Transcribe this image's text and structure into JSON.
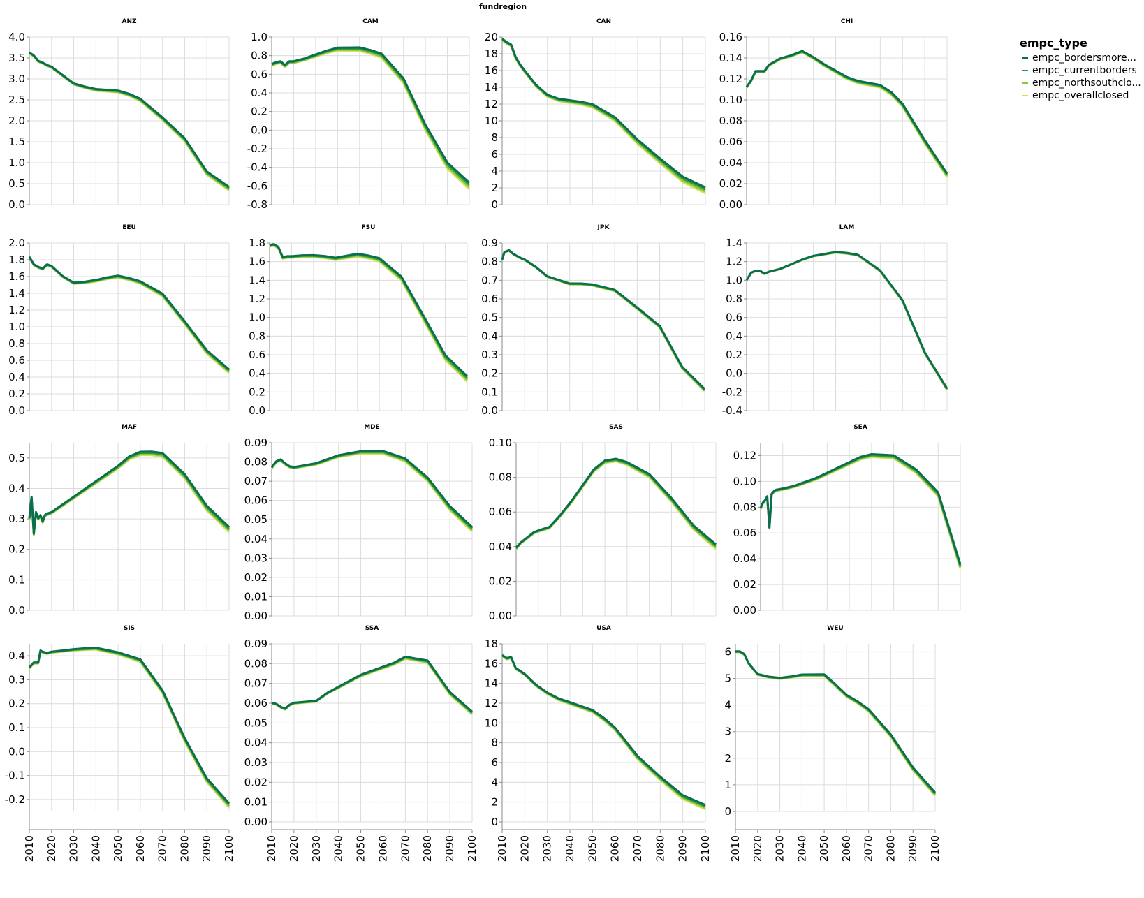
{
  "chart_data": {
    "type": "line",
    "title": "fundregion",
    "legend": {
      "title": "empc_type",
      "placement": "top-right",
      "entries": [
        {
          "label": "empc_bordersmore...",
          "color": "#0b6e4f"
        },
        {
          "label": "empc_currentborders",
          "color": "#2e9a3e"
        },
        {
          "label": "empc_northsouthclo...",
          "color": "#8cc63f"
        },
        {
          "label": "empc_overallclosed",
          "color": "#d4e157"
        }
      ]
    },
    "x_ticks": [
      "2010",
      "2020",
      "2030",
      "2040",
      "2050",
      "2060",
      "2070",
      "2080",
      "2090",
      "2100"
    ],
    "facets": [
      {
        "name": "ANZ",
        "ylim": [
          0,
          4.0
        ],
        "yticks": [
          "0.0",
          "0.5",
          "1.0",
          "1.5",
          "2.0",
          "2.5",
          "3.0",
          "3.5",
          "4.0"
        ],
        "x": [
          2010,
          2012,
          2014,
          2016,
          2018,
          2020,
          2025,
          2030,
          2035,
          2040,
          2045,
          2050,
          2055,
          2060,
          2070,
          2080,
          2090,
          2100
        ],
        "y": [
          3.62,
          3.55,
          3.42,
          3.38,
          3.32,
          3.28,
          3.08,
          2.88,
          2.8,
          2.74,
          2.72,
          2.7,
          2.62,
          2.5,
          2.05,
          1.55,
          0.75,
          0.38
        ],
        "spread": 0.03
      },
      {
        "name": "CAM",
        "ylim": [
          -0.8,
          1.0
        ],
        "yticks": [
          "-0.8",
          "-0.6",
          "-0.4",
          "-0.2",
          "0.0",
          "0.2",
          "0.4",
          "0.6",
          "0.8",
          "1.0"
        ],
        "x": [
          2010,
          2012,
          2014,
          2016,
          2018,
          2020,
          2025,
          2030,
          2035,
          2040,
          2045,
          2050,
          2055,
          2060,
          2070,
          2080,
          2090,
          2100
        ],
        "y": [
          0.7,
          0.72,
          0.73,
          0.69,
          0.73,
          0.73,
          0.76,
          0.8,
          0.84,
          0.87,
          0.87,
          0.87,
          0.84,
          0.8,
          0.53,
          0.03,
          -0.38,
          -0.6
        ],
        "spread": 0.025
      },
      {
        "name": "CAN",
        "ylim": [
          0,
          20
        ],
        "yticks": [
          "0",
          "2",
          "4",
          "6",
          "8",
          "10",
          "12",
          "14",
          "16",
          "18",
          "20"
        ],
        "x": [
          2010,
          2012,
          2014,
          2016,
          2018,
          2020,
          2025,
          2030,
          2035,
          2040,
          2045,
          2050,
          2055,
          2060,
          2070,
          2080,
          2090,
          2100
        ],
        "y": [
          19.7,
          19.3,
          19.0,
          17.5,
          16.6,
          15.9,
          14.2,
          13.0,
          12.5,
          12.3,
          12.1,
          11.8,
          11.0,
          10.2,
          7.5,
          5.2,
          3.0,
          1.7
        ],
        "spread": 0.25
      },
      {
        "name": "CHI",
        "ylim": [
          0,
          0.16
        ],
        "yticks": [
          "0.00",
          "0.02",
          "0.04",
          "0.06",
          "0.08",
          "0.10",
          "0.12",
          "0.14",
          "0.16"
        ],
        "x": [
          2010,
          2012,
          2014,
          2016,
          2018,
          2020,
          2025,
          2030,
          2035,
          2040,
          2045,
          2050,
          2055,
          2060,
          2070,
          2075,
          2080,
          2090,
          2100
        ],
        "y": [
          0.112,
          0.118,
          0.127,
          0.127,
          0.127,
          0.133,
          0.139,
          0.142,
          0.146,
          0.14,
          0.133,
          0.127,
          0.121,
          0.117,
          0.113,
          0.106,
          0.095,
          0.06,
          0.028
        ],
        "spread": 0.0012
      },
      {
        "name": "EEU",
        "ylim": [
          0,
          2.0
        ],
        "yticks": [
          "0.0",
          "0.2",
          "0.4",
          "0.6",
          "0.8",
          "1.0",
          "1.2",
          "1.4",
          "1.6",
          "1.8",
          "2.0"
        ],
        "x": [
          2010,
          2012,
          2014,
          2016,
          2018,
          2020,
          2025,
          2030,
          2035,
          2040,
          2045,
          2050,
          2055,
          2060,
          2070,
          2080,
          2090,
          2100
        ],
        "y": [
          1.83,
          1.74,
          1.71,
          1.69,
          1.74,
          1.72,
          1.6,
          1.52,
          1.53,
          1.55,
          1.58,
          1.6,
          1.57,
          1.53,
          1.38,
          1.05,
          0.7,
          0.47
        ],
        "spread": 0.015
      },
      {
        "name": "FSU",
        "ylim": [
          0,
          1.8
        ],
        "yticks": [
          "0.0",
          "0.2",
          "0.4",
          "0.6",
          "0.8",
          "1.0",
          "1.2",
          "1.4",
          "1.6",
          "1.8"
        ],
        "x": [
          2010,
          2012,
          2014,
          2016,
          2018,
          2020,
          2025,
          2030,
          2035,
          2040,
          2045,
          2050,
          2055,
          2060,
          2070,
          2080,
          2090,
          2100
        ],
        "y": [
          1.77,
          1.78,
          1.75,
          1.64,
          1.65,
          1.65,
          1.66,
          1.66,
          1.65,
          1.63,
          1.65,
          1.67,
          1.65,
          1.62,
          1.42,
          1.0,
          0.57,
          0.34
        ],
        "spread": 0.02
      },
      {
        "name": "JPK",
        "ylim": [
          0,
          0.9
        ],
        "yticks": [
          "0.0",
          "0.1",
          "0.2",
          "0.3",
          "0.4",
          "0.5",
          "0.6",
          "0.7",
          "0.8",
          "0.9"
        ],
        "x": [
          2010,
          2011,
          2013,
          2015,
          2018,
          2020,
          2025,
          2030,
          2035,
          2040,
          2045,
          2050,
          2055,
          2060,
          2070,
          2080,
          2090,
          2100
        ],
        "y": [
          0.81,
          0.85,
          0.86,
          0.84,
          0.82,
          0.81,
          0.77,
          0.72,
          0.7,
          0.68,
          0.68,
          0.675,
          0.66,
          0.645,
          0.55,
          0.45,
          0.23,
          0.11
        ],
        "spread": 0.004
      },
      {
        "name": "LAM",
        "ylim": [
          -0.4,
          1.4
        ],
        "yticks": [
          "-0.4",
          "-0.2",
          "0.0",
          "0.2",
          "0.4",
          "0.6",
          "0.8",
          "1.0",
          "1.2",
          "1.4"
        ],
        "x": [
          2010,
          2012,
          2014,
          2016,
          2018,
          2020,
          2025,
          2030,
          2035,
          2040,
          2045,
          2050,
          2055,
          2060,
          2070,
          2080,
          2090,
          2100
        ],
        "y": [
          1.0,
          1.08,
          1.1,
          1.1,
          1.07,
          1.09,
          1.12,
          1.17,
          1.22,
          1.26,
          1.28,
          1.3,
          1.29,
          1.27,
          1.1,
          0.78,
          0.22,
          -0.17
        ],
        "spread": 0.005
      },
      {
        "name": "MAF",
        "ylim": [
          0,
          0.55
        ],
        "yticks": [
          "0.0",
          "0.1",
          "0.2",
          "0.3",
          "0.4",
          "0.5"
        ],
        "x": [
          2010,
          2011,
          2012,
          2013,
          2014,
          2015,
          2016,
          2017,
          2018,
          2020,
          2025,
          2030,
          2035,
          2040,
          2045,
          2050,
          2055,
          2060,
          2065,
          2070,
          2080,
          2090,
          2100
        ],
        "y": [
          0.3,
          0.37,
          0.25,
          0.32,
          0.3,
          0.31,
          0.29,
          0.31,
          0.315,
          0.32,
          0.345,
          0.37,
          0.395,
          0.42,
          0.445,
          0.47,
          0.5,
          0.515,
          0.515,
          0.51,
          0.44,
          0.335,
          0.265
        ],
        "spread": 0.006
      },
      {
        "name": "MDE",
        "ylim": [
          0,
          0.09
        ],
        "yticks": [
          "0.00",
          "0.01",
          "0.02",
          "0.03",
          "0.04",
          "0.05",
          "0.06",
          "0.07",
          "0.08",
          "0.09"
        ],
        "x": [
          2010,
          2012,
          2014,
          2016,
          2018,
          2020,
          2025,
          2030,
          2035,
          2040,
          2045,
          2050,
          2055,
          2060,
          2070,
          2080,
          2090,
          2100
        ],
        "y": [
          0.077,
          0.08,
          0.081,
          0.079,
          0.0775,
          0.077,
          0.078,
          0.079,
          0.081,
          0.083,
          0.084,
          0.085,
          0.085,
          0.085,
          0.081,
          0.071,
          0.056,
          0.045
        ],
        "spread": 0.0008
      },
      {
        "name": "SAS",
        "ylim": [
          0,
          0.1
        ],
        "yticks": [
          "0.00",
          "0.02",
          "0.04",
          "0.06",
          "0.08",
          "0.10"
        ],
        "x": [
          2010,
          2012,
          2014,
          2016,
          2018,
          2020,
          2025,
          2030,
          2035,
          2040,
          2045,
          2050,
          2055,
          2060,
          2070,
          2080,
          2090,
          2100
        ],
        "y": [
          0.039,
          0.042,
          0.044,
          0.046,
          0.048,
          0.049,
          0.051,
          0.058,
          0.066,
          0.075,
          0.084,
          0.089,
          0.09,
          0.088,
          0.081,
          0.067,
          0.051,
          0.04
        ],
        "spread": 0.0009
      },
      {
        "name": "SEA",
        "ylim": [
          0,
          0.13
        ],
        "yticks": [
          "0.00",
          "0.02",
          "0.04",
          "0.06",
          "0.08",
          "0.10",
          "0.12"
        ],
        "x": [
          2010,
          2011,
          2012,
          2013,
          2014,
          2015,
          2016,
          2017,
          2020,
          2025,
          2030,
          2035,
          2040,
          2045,
          2050,
          2055,
          2060,
          2070,
          2080,
          2090,
          2100
        ],
        "y": [
          0.079,
          0.083,
          0.085,
          0.088,
          0.064,
          0.09,
          0.092,
          0.093,
          0.094,
          0.096,
          0.099,
          0.102,
          0.106,
          0.11,
          0.114,
          0.118,
          0.12,
          0.119,
          0.108,
          0.09,
          0.034
        ],
        "spread": 0.0012
      },
      {
        "name": "SIS",
        "ylim": [
          -0.25,
          0.45
        ],
        "yticks": [
          "-0.2",
          "-0.1",
          "0.0",
          "0.1",
          "0.2",
          "0.3",
          "0.4"
        ],
        "x": [
          2010,
          2011,
          2012,
          2013,
          2014,
          2015,
          2016,
          2018,
          2020,
          2025,
          2030,
          2035,
          2040,
          2045,
          2050,
          2055,
          2060,
          2070,
          2080,
          2090,
          2100
        ],
        "y": [
          0.35,
          0.36,
          0.37,
          0.37,
          0.37,
          0.42,
          0.415,
          0.41,
          0.415,
          0.42,
          0.425,
          0.428,
          0.43,
          0.42,
          0.41,
          0.395,
          0.38,
          0.25,
          0.05,
          -0.12,
          -0.225
        ],
        "spread": 0.006
      },
      {
        "name": "SSA",
        "ylim": [
          0,
          0.09
        ],
        "yticks": [
          "0.00",
          "0.01",
          "0.02",
          "0.03",
          "0.04",
          "0.05",
          "0.06",
          "0.07",
          "0.08",
          "0.09"
        ],
        "x": [
          2010,
          2012,
          2014,
          2016,
          2018,
          2020,
          2025,
          2030,
          2035,
          2040,
          2045,
          2050,
          2055,
          2060,
          2065,
          2070,
          2075,
          2080,
          2090,
          2100
        ],
        "y": [
          0.06,
          0.0595,
          0.058,
          0.057,
          0.059,
          0.06,
          0.0605,
          0.061,
          0.065,
          0.068,
          0.071,
          0.074,
          0.076,
          0.078,
          0.08,
          0.083,
          0.082,
          0.081,
          0.065,
          0.055
        ],
        "spread": 0.0005
      },
      {
        "name": "USA",
        "ylim": [
          0,
          18
        ],
        "yticks": [
          "0",
          "2",
          "4",
          "6",
          "8",
          "10",
          "12",
          "14",
          "16",
          "18"
        ],
        "x": [
          2010,
          2012,
          2014,
          2016,
          2018,
          2020,
          2025,
          2030,
          2035,
          2040,
          2045,
          2050,
          2055,
          2060,
          2070,
          2080,
          2090,
          2100
        ],
        "y": [
          16.8,
          16.5,
          16.6,
          15.5,
          15.2,
          14.9,
          13.8,
          13.0,
          12.4,
          12.0,
          11.6,
          11.2,
          10.4,
          9.4,
          6.5,
          4.4,
          2.5,
          1.5
        ],
        "spread": 0.15
      },
      {
        "name": "WEU",
        "ylim": [
          0,
          6.3
        ],
        "yticks": [
          "0",
          "1",
          "2",
          "3",
          "4",
          "5",
          "6"
        ],
        "x": [
          2010,
          2012,
          2014,
          2016,
          2018,
          2020,
          2025,
          2030,
          2035,
          2040,
          2045,
          2050,
          2055,
          2060,
          2065,
          2070,
          2080,
          2090,
          2100
        ],
        "y": [
          6.0,
          6.0,
          5.9,
          5.55,
          5.35,
          5.15,
          5.05,
          5.0,
          5.05,
          5.12,
          5.12,
          5.12,
          4.75,
          4.35,
          4.1,
          3.8,
          2.85,
          1.6,
          0.65
        ],
        "spread": 0.04
      }
    ]
  }
}
